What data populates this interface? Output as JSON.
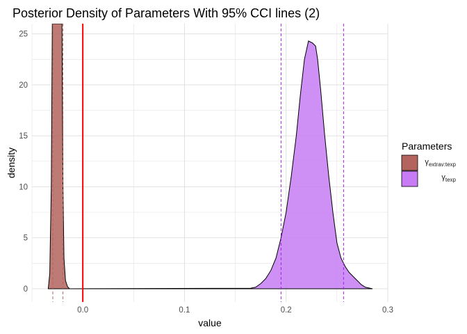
{
  "chart_data": {
    "type": "area",
    "title": "Posterior Density of Parameters With 95% CCI lines (2)",
    "xlabel": "value",
    "ylabel": "density",
    "xlim": [
      -0.05,
      0.3
    ],
    "ylim": [
      -1.3,
      26
    ],
    "x_ticks": [
      0.0,
      0.1,
      0.2,
      0.3
    ],
    "x_tick_labels": [
      "0.0",
      "0.1",
      "0.2",
      "0.3"
    ],
    "y_ticks": [
      0,
      5,
      10,
      15,
      20,
      25
    ],
    "y_tick_labels": [
      "0",
      "5",
      "10",
      "15",
      "20",
      "25"
    ],
    "grid": true,
    "legend": {
      "title": "Parameters",
      "placement": "right",
      "entries": [
        {
          "symbol": "γ",
          "subscript": "extrav:texp",
          "color": "#b3645e"
        },
        {
          "symbol": "γ",
          "subscript": "texp",
          "color": "#c77cf5"
        }
      ]
    },
    "series": [
      {
        "color": "#b3645e",
        "points": [
          [
            -0.034,
            0
          ],
          [
            -0.0325,
            1.5
          ],
          [
            -0.031,
            10
          ],
          [
            -0.03,
            26
          ],
          [
            -0.0205,
            26
          ],
          [
            -0.0195,
            10
          ],
          [
            -0.0185,
            3
          ],
          [
            -0.017,
            0.8
          ],
          [
            -0.015,
            0.2
          ],
          [
            -0.013,
            0
          ]
        ]
      },
      {
        "color": "#c77cf5",
        "points": [
          [
            -0.015,
            0
          ],
          [
            0.165,
            0.05
          ],
          [
            0.17,
            0.15
          ],
          [
            0.175,
            0.5
          ],
          [
            0.18,
            1
          ],
          [
            0.185,
            1.8
          ],
          [
            0.19,
            3
          ],
          [
            0.195,
            5
          ],
          [
            0.2,
            7.5
          ],
          [
            0.205,
            11
          ],
          [
            0.21,
            15
          ],
          [
            0.214,
            19
          ],
          [
            0.218,
            22.5
          ],
          [
            0.222,
            24.3
          ],
          [
            0.226,
            24.1
          ],
          [
            0.229,
            23.8
          ],
          [
            0.231,
            22.5
          ],
          [
            0.234,
            19.5
          ],
          [
            0.238,
            15
          ],
          [
            0.242,
            11
          ],
          [
            0.246,
            7.5
          ],
          [
            0.25,
            4.5
          ],
          [
            0.254,
            3
          ],
          [
            0.258,
            2.2
          ],
          [
            0.262,
            1.6
          ],
          [
            0.266,
            1.2
          ],
          [
            0.27,
            0.8
          ],
          [
            0.274,
            0.4
          ],
          [
            0.278,
            0.15
          ],
          [
            0.285,
            0
          ]
        ]
      }
    ],
    "vlines": [
      {
        "x": 0,
        "color": "#ff0000",
        "style": "solid"
      },
      {
        "x": -0.0295,
        "color": "#b3645e",
        "style": "dashed"
      },
      {
        "x": -0.0195,
        "color": "#b3645e",
        "style": "dashed"
      },
      {
        "x": 0.195,
        "color": "#a020f0",
        "style": "dashed"
      },
      {
        "x": 0.2565,
        "color": "#a020f0",
        "style": "dashed"
      }
    ]
  }
}
